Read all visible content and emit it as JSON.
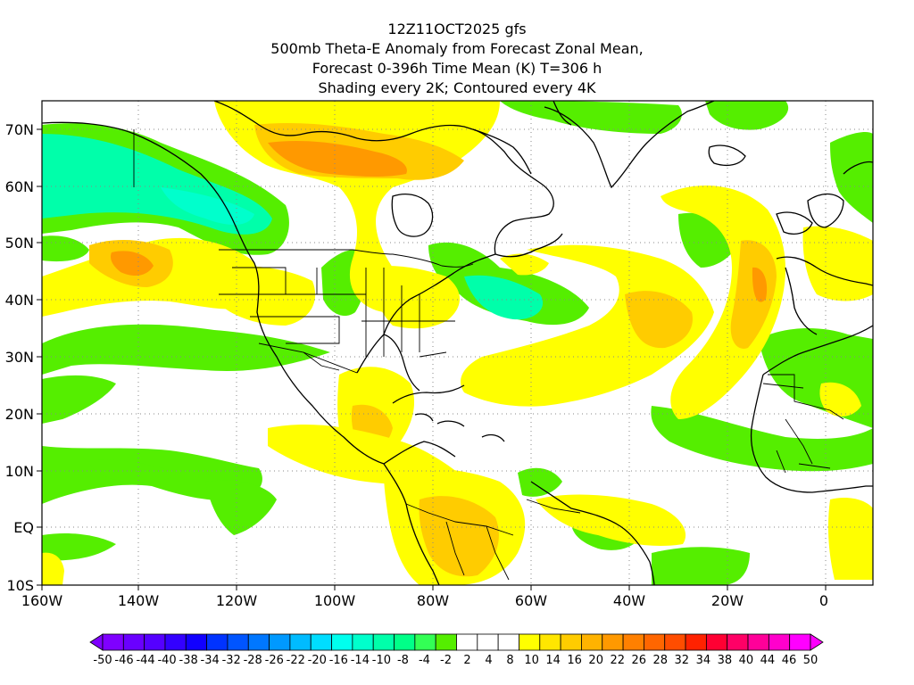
{
  "title": {
    "line1": "12Z11OCT2025 gfs",
    "line2": "500mb Theta-E Anomaly from Forecast Zonal Mean,",
    "line3": "Forecast 0-396h Time Mean (K) T=306 h",
    "line4": "Shading every 2K; Contoured every 4K"
  },
  "axes": {
    "x_ticks": [
      "160W",
      "140W",
      "120W",
      "100W",
      "80W",
      "60W",
      "40W",
      "20W",
      "0"
    ],
    "y_ticks": [
      "70N",
      "60N",
      "50N",
      "40N",
      "30N",
      "20N",
      "10N",
      "EQ",
      "10S"
    ]
  },
  "colorbar": {
    "labels": [
      "-50",
      "-46",
      "-44",
      "-40",
      "-38",
      "-34",
      "-32",
      "-28",
      "-26",
      "-22",
      "-20",
      "-16",
      "-14",
      "-10",
      "-8",
      "-4",
      "-2",
      "2",
      "4",
      "8",
      "10",
      "14",
      "16",
      "20",
      "22",
      "26",
      "28",
      "32",
      "34",
      "38",
      "40",
      "44",
      "46",
      "50"
    ],
    "colors": [
      "#7f00ff",
      "#6a00ff",
      "#5500ff",
      "#3300ff",
      "#1100ff",
      "#0033ff",
      "#0055ff",
      "#0077ff",
      "#0099ff",
      "#00bbff",
      "#00ddff",
      "#00ffee",
      "#00ffcc",
      "#00ffaa",
      "#00ff88",
      "#33ff55",
      "#55ee00",
      "#ffffff",
      "#ffffff",
      "#ffffff",
      "#ffff00",
      "#ffe600",
      "#ffcc00",
      "#ffb300",
      "#ff9900",
      "#ff8000",
      "#ff6600",
      "#ff4d00",
      "#ff2200",
      "#ff0033",
      "#ff0066",
      "#ff0099",
      "#ff00cc",
      "#ff00ff"
    ]
  },
  "legend_colors": {
    "yellow": "#ffff00",
    "gold": "#ffcc00",
    "orange": "#ff9900",
    "green": "#55ee00",
    "teal": "#00ffaa",
    "cyan": "#00ffcc"
  }
}
